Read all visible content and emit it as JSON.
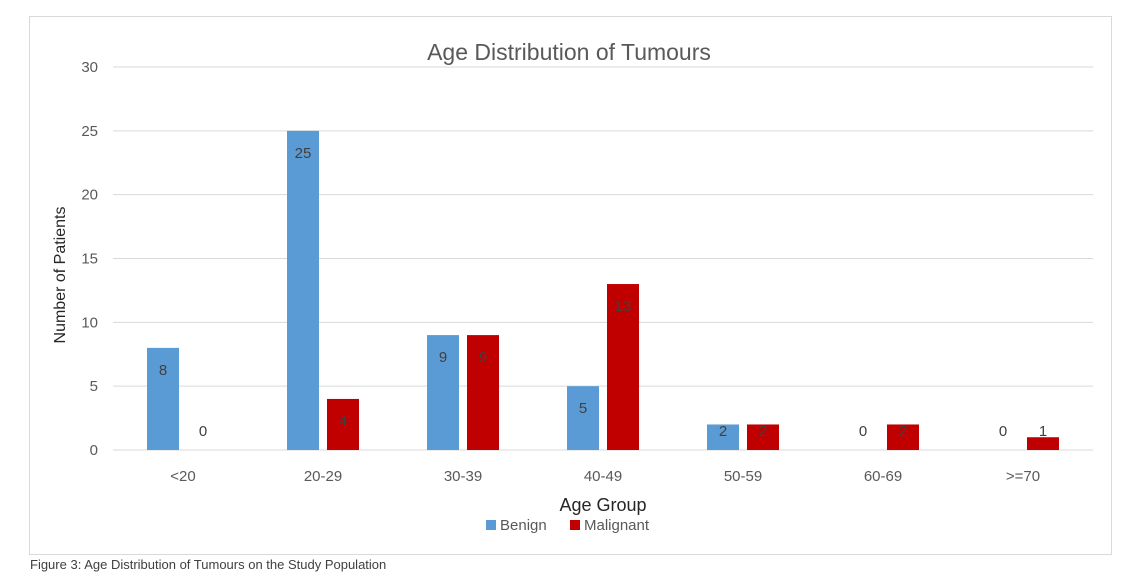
{
  "chart_data": {
    "type": "bar",
    "title": "Age Distribution of Tumours",
    "xlabel": "Age Group",
    "ylabel": "Number of Patients",
    "categories": [
      "<20",
      "20-29",
      "30-39",
      "40-49",
      "50-59",
      "60-69",
      ">=70"
    ],
    "series": [
      {
        "name": "Benign",
        "values": [
          8,
          25,
          9,
          5,
          2,
          0,
          0
        ],
        "color": "#5b9bd5"
      },
      {
        "name": "Malignant",
        "values": [
          0,
          4,
          9,
          13,
          2,
          2,
          1
        ],
        "color": "#c00000"
      }
    ],
    "ylim": [
      0,
      30
    ],
    "yticks": [
      0,
      5,
      10,
      15,
      20,
      25,
      30
    ],
    "grid": true,
    "legend_position": "bottom"
  },
  "colors": {
    "gridline": "#d9d9d9",
    "axis_text": "#595959",
    "title_text": "#595959",
    "data_label": "#404040"
  },
  "caption_partial": "Figure 3: Age Distribution of Tumours on the Study Population"
}
